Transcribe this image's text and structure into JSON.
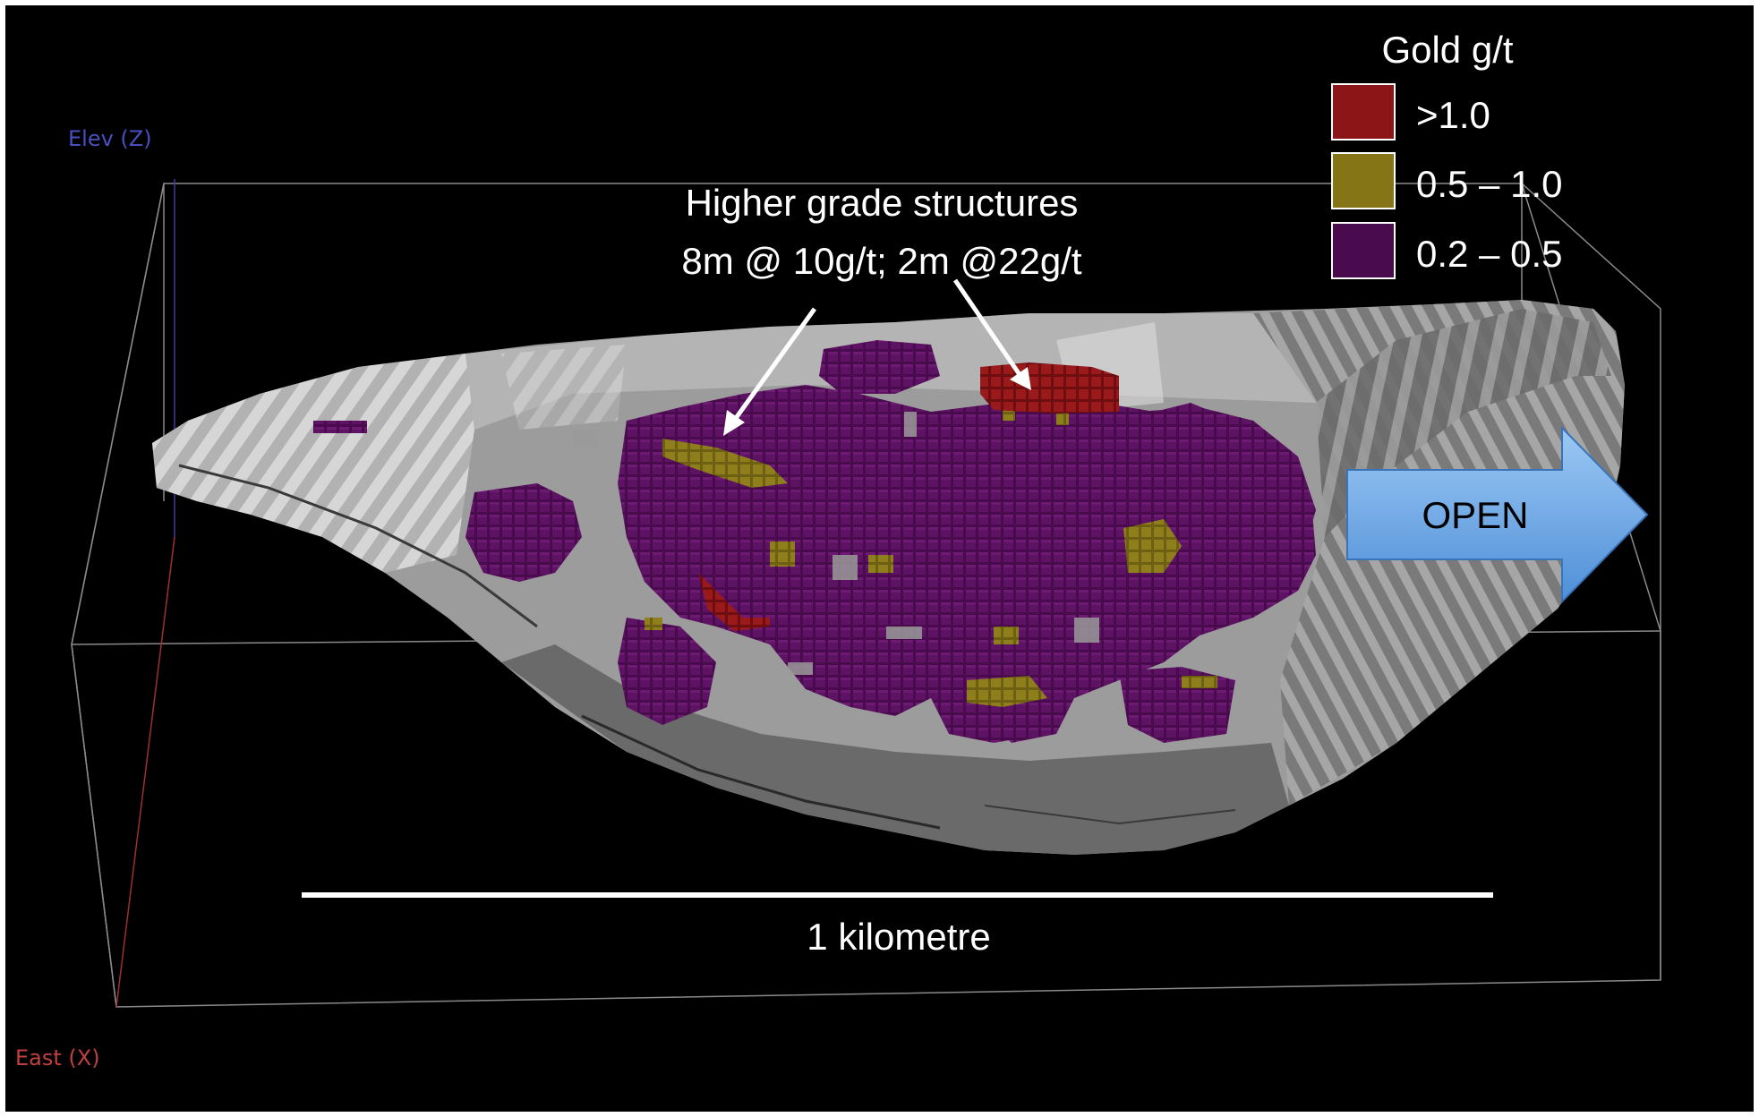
{
  "axes": {
    "elev_label": "Elev (Z)",
    "east_label": "East (X)",
    "elev_color": "#4a4fc0",
    "east_color": "#c04040"
  },
  "legend": {
    "title": "Gold g/t",
    "items": [
      {
        "label": ">1.0",
        "color": "#8c1518"
      },
      {
        "label": "0.5 – 1.0",
        "color": "#857517"
      },
      {
        "label": "0.2 – 0.5",
        "color": "#4a0b4e"
      }
    ]
  },
  "annotation": {
    "line1": "Higher grade structures",
    "line2": "8m @ 10g/t; 2m @22g/t"
  },
  "open_arrow": {
    "label": "OPEN",
    "color": "#6aa8e6"
  },
  "scale_bar": {
    "label": "1 kilometre"
  },
  "colors": {
    "background": "#000000",
    "shell": "#9c9c9c",
    "shell_light": "#c8c8c8",
    "shell_dark": "#5e5e5e",
    "box_lines": "#8a8a8a"
  }
}
